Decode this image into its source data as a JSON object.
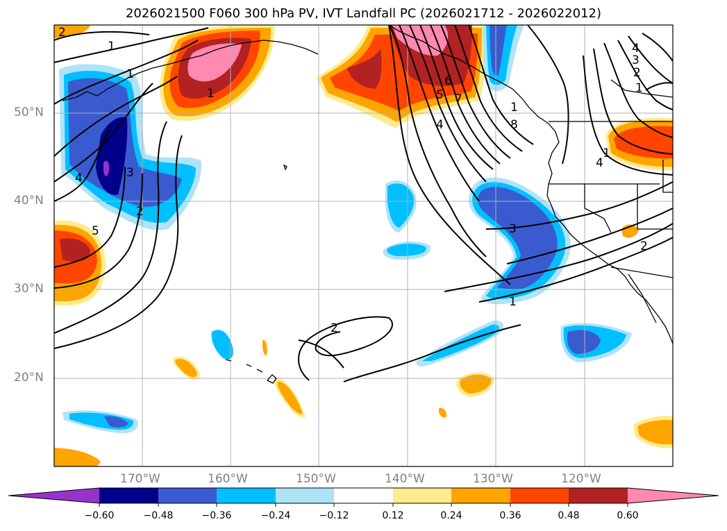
{
  "title": "2026021500 F060 300 hPa PV, IVT Landfall PC (2026021712 - 2026022012)",
  "map": {
    "lon_range": [
      180,
      110
    ],
    "lat_range": [
      10,
      60
    ],
    "projection": "PlateCarree",
    "lat_labels": [
      "50°N",
      "40°N",
      "30°N",
      "20°N"
    ],
    "lon_labels": [
      "170°W",
      "160°W",
      "150°W",
      "140°W",
      "130°W",
      "120°W"
    ],
    "gridlines": true
  },
  "contour_labels": [
    "2",
    "1",
    "1",
    "1",
    "4",
    "3",
    "2",
    "5",
    "6",
    "5",
    "7",
    "4",
    "8",
    "1",
    "4",
    "3",
    "2",
    "1",
    "4",
    "1",
    "3",
    "1",
    "2",
    "2"
  ],
  "colorbar": {
    "ticks": [
      "−0.60",
      "−0.48",
      "−0.36",
      "−0.24",
      "−0.12",
      "0.12",
      "0.24",
      "0.36",
      "0.48",
      "0.60"
    ],
    "colors": [
      "#9932CC",
      "#00008B",
      "#3A5BCF",
      "#00BFFF",
      "#AEE3F8",
      "#FFFFFF",
      "#FFEB8E",
      "#FFA500",
      "#FF4500",
      "#B22222",
      "#FF89B0"
    ]
  },
  "chart_data": {
    "type": "filled-contour map",
    "title": "2026021500 F060 300 hPa PV, IVT Landfall PC (2026021712 - 2026022012)",
    "field_shaded": "300 hPa PV principal component",
    "field_contoured": "IVT landfall PC",
    "levels": [
      -0.6,
      -0.48,
      -0.36,
      -0.24,
      -0.12,
      0.12,
      0.24,
      0.36,
      0.48,
      0.6
    ],
    "xlim_lon_w": [
      180,
      110
    ],
    "ylim_lat_n": [
      10,
      60
    ]
  }
}
